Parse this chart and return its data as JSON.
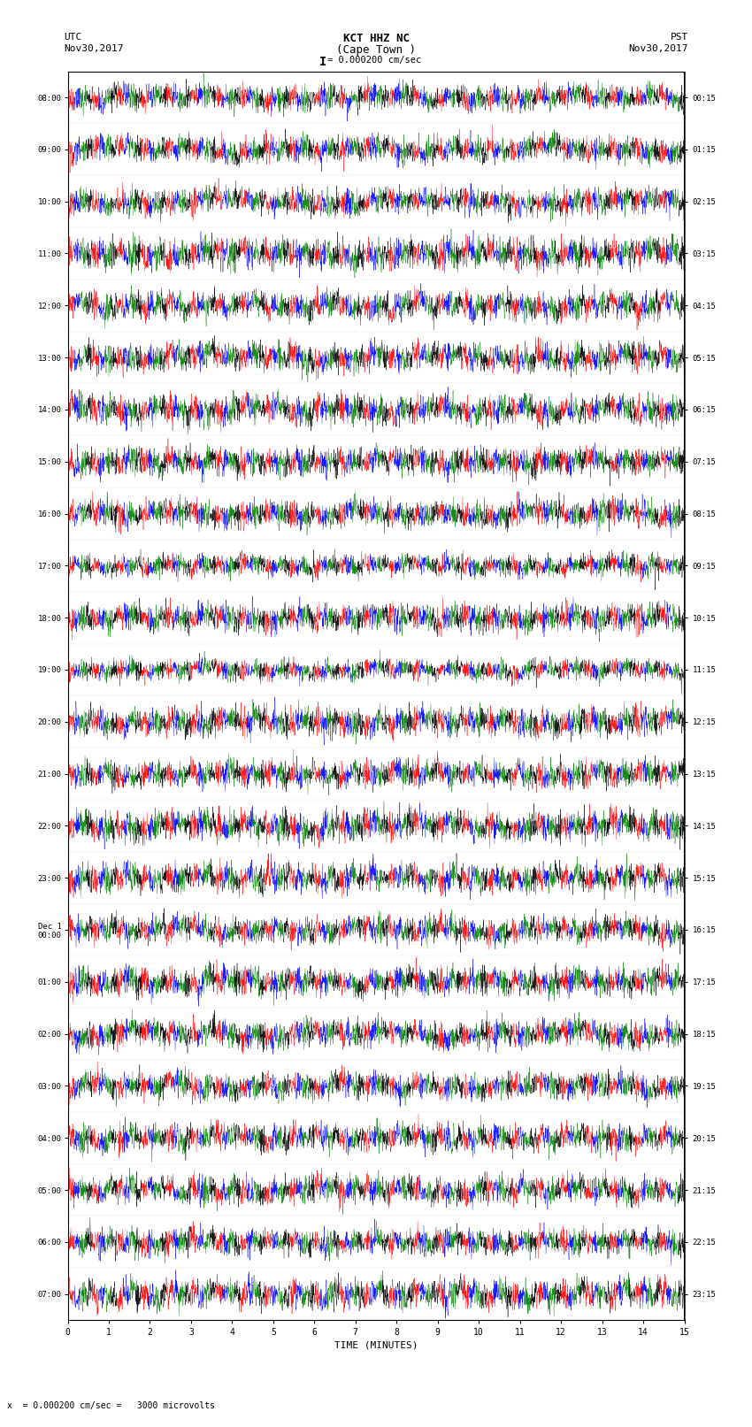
{
  "title_line1": "KCT HHZ NC",
  "title_line2": "(Cape Town )",
  "scale_label": "= 0.000200 cm/sec",
  "left_header": "UTC",
  "left_date": "Nov30,2017",
  "right_header": "PST",
  "right_date": "Nov30,2017",
  "bottom_label": "TIME (MINUTES)",
  "bottom_note": "x  = 0.000200 cm/sec =   3000 microvolts",
  "left_times": [
    "08:00",
    "09:00",
    "10:00",
    "11:00",
    "12:00",
    "13:00",
    "14:00",
    "15:00",
    "16:00",
    "17:00",
    "18:00",
    "19:00",
    "20:00",
    "21:00",
    "22:00",
    "23:00",
    "Dec 1\n00:00",
    "01:00",
    "02:00",
    "03:00",
    "04:00",
    "05:00",
    "06:00",
    "07:00"
  ],
  "right_times": [
    "00:15",
    "01:15",
    "02:15",
    "03:15",
    "04:15",
    "05:15",
    "06:15",
    "07:15",
    "08:15",
    "09:15",
    "10:15",
    "11:15",
    "12:15",
    "13:15",
    "14:15",
    "15:15",
    "16:15",
    "17:15",
    "18:15",
    "19:15",
    "20:15",
    "21:15",
    "22:15",
    "23:15"
  ],
  "x_ticks": [
    0,
    1,
    2,
    3,
    4,
    5,
    6,
    7,
    8,
    9,
    10,
    11,
    12,
    13,
    14,
    15
  ],
  "num_rows": 24,
  "bg_color": "#ffffff",
  "trace_colors": [
    "#ff0000",
    "#0000ff",
    "#008000",
    "#000000"
  ],
  "fig_width": 8.5,
  "fig_height": 16.13
}
